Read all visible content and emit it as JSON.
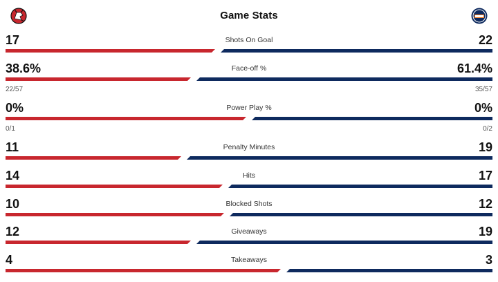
{
  "title": "Game Stats",
  "teams": {
    "home": {
      "logo": "devils-logo-icon",
      "color": "#c8272e"
    },
    "away": {
      "logo": "oilers-logo-icon",
      "color": "#0e2a5e"
    }
  },
  "stats": [
    {
      "label": "Shots On Goal",
      "home": "17",
      "away": "22",
      "home_share": 0.436
    },
    {
      "label": "Face-off %",
      "home": "38.6%",
      "away": "61.4%",
      "home_sub": "22/57",
      "away_sub": "35/57",
      "home_share": 0.386
    },
    {
      "label": "Power Play %",
      "home": "0%",
      "away": "0%",
      "home_sub": "0/1",
      "away_sub": "0/2",
      "home_share": 0.5
    },
    {
      "label": "Penalty Minutes",
      "home": "11",
      "away": "19",
      "home_share": 0.367
    },
    {
      "label": "Hits",
      "home": "14",
      "away": "17",
      "home_share": 0.452
    },
    {
      "label": "Blocked Shots",
      "home": "10",
      "away": "12",
      "home_share": 0.455
    },
    {
      "label": "Giveaways",
      "home": "12",
      "away": "19",
      "home_share": 0.387
    },
    {
      "label": "Takeaways",
      "home": "4",
      "away": "3",
      "home_share": 0.571
    }
  ]
}
